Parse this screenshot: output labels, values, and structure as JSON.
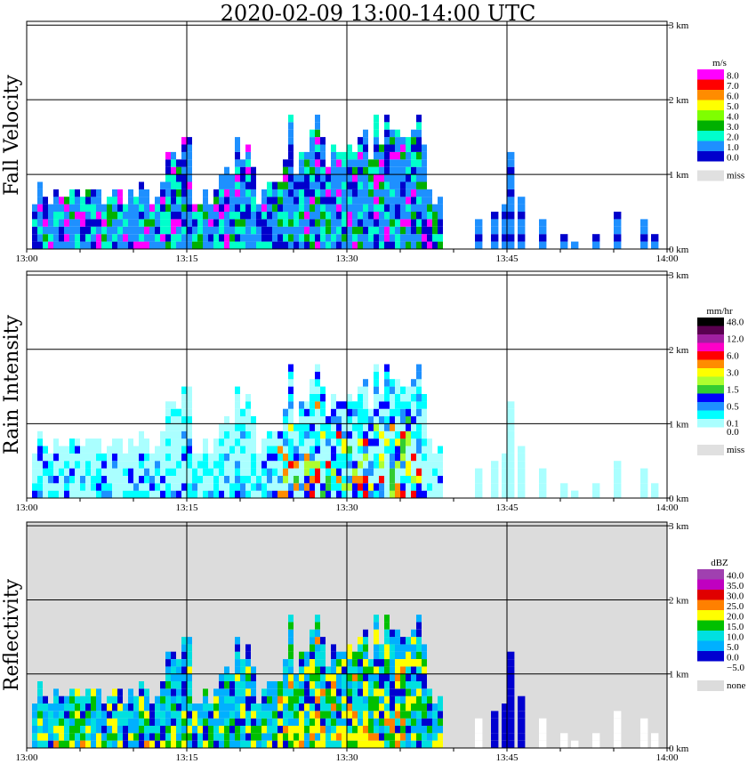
{
  "title": "2020-02-09   13:00-14:00 UTC",
  "chart_data": [
    {
      "type": "heatmap",
      "title": "Fall Velocity",
      "ylabel": "Fall Velocity",
      "x_ticks": [
        "13:00",
        "13:15",
        "13:30",
        "13:45",
        "14:00"
      ],
      "y_ticks": [
        "0 km",
        "1 km",
        "2 km",
        "3 km"
      ],
      "ylim": [
        0,
        3
      ],
      "background": "#ffffff",
      "legend": {
        "unit": "m/s",
        "entries": [
          {
            "label": "8.0",
            "color": "#ff00ff"
          },
          {
            "label": "7.0",
            "color": "#ff0000"
          },
          {
            "label": "6.0",
            "color": "#ff8c00"
          },
          {
            "label": "5.0",
            "color": "#ffff00"
          },
          {
            "label": "4.0",
            "color": "#7fff00"
          },
          {
            "label": "3.0",
            "color": "#00b000"
          },
          {
            "label": "2.0",
            "color": "#00ffcc"
          },
          {
            "label": "1.0",
            "color": "#1e90ff"
          },
          {
            "label": "0.0",
            "color": "#0000cc"
          }
        ],
        "miss_label": "miss",
        "miss_color": "#e0e0e0"
      }
    },
    {
      "type": "heatmap",
      "title": "Rain Intensity",
      "ylabel": "Rain Intensity",
      "x_ticks": [
        "13:00",
        "13:15",
        "13:30",
        "13:45",
        "14:00"
      ],
      "y_ticks": [
        "0 km",
        "1 km",
        "2 km",
        "3 km"
      ],
      "ylim": [
        0,
        3
      ],
      "background": "#ffffff",
      "legend": {
        "unit": "mm/hr",
        "entries": [
          {
            "label": "48.0",
            "color": "#000000"
          },
          {
            "label": "",
            "color": "#5a0050"
          },
          {
            "label": "12.0",
            "color": "#a020a0"
          },
          {
            "label": "",
            "color": "#ff00c8"
          },
          {
            "label": "6.0",
            "color": "#ff0000"
          },
          {
            "label": "",
            "color": "#ff8c00"
          },
          {
            "label": "3.0",
            "color": "#ffff00"
          },
          {
            "label": "",
            "color": "#adff2f"
          },
          {
            "label": "1.5",
            "color": "#32cd32"
          },
          {
            "label": "",
            "color": "#0000ff"
          },
          {
            "label": "0.5",
            "color": "#1e90ff"
          },
          {
            "label": "",
            "color": "#00ffff"
          },
          {
            "label": "0.1",
            "color": "#aaffff"
          },
          {
            "label": "0.0",
            "color": "#ffffff"
          }
        ],
        "miss_label": "miss",
        "miss_color": "#e0e0e0"
      }
    },
    {
      "type": "heatmap",
      "title": "Reflectivity",
      "ylabel": "Reflectivity",
      "x_ticks": [
        "13:00",
        "13:15",
        "13:30",
        "13:45",
        "14:00"
      ],
      "y_ticks": [
        "0 km",
        "1 km",
        "2 km",
        "3 km"
      ],
      "ylim": [
        0,
        3
      ],
      "background": "#dcdcdc",
      "legend": {
        "unit": "dBZ",
        "entries": [
          {
            "label": "40.0",
            "color": "#a040b0"
          },
          {
            "label": "35.0",
            "color": "#c000c0"
          },
          {
            "label": "30.0",
            "color": "#e00000"
          },
          {
            "label": "25.0",
            "color": "#ff8000"
          },
          {
            "label": "20.0",
            "color": "#ffff00"
          },
          {
            "label": "15.0",
            "color": "#00c000"
          },
          {
            "label": "10.0",
            "color": "#00e0e0"
          },
          {
            "label": "5.0",
            "color": "#00b0ff"
          },
          {
            "label": "0.0",
            "color": "#0000d0"
          },
          {
            "label": "−5.0",
            "color": "#ffffff"
          }
        ],
        "miss_label": "none",
        "miss_color": "#dcdcdc"
      }
    }
  ]
}
